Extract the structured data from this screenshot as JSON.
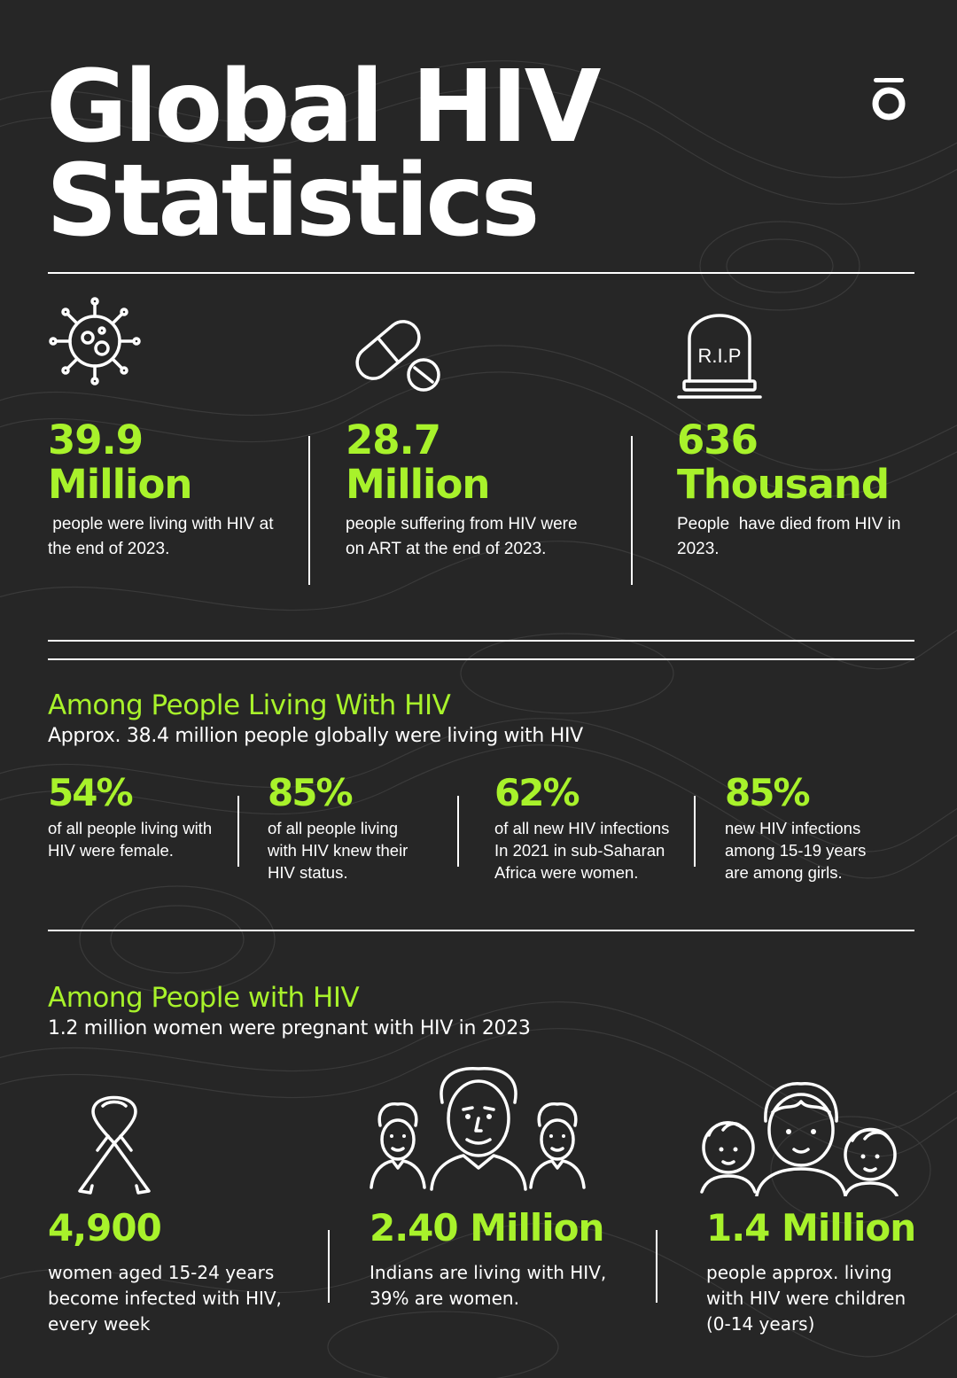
{
  "title_line1": "Global HIV",
  "title_line2": "Statistics",
  "top_stats": [
    {
      "icon": "virus-icon",
      "value": "39.9",
      "unit": "Million",
      "text": " people were living with HIV at the end of 2023."
    },
    {
      "icon": "pill-icon",
      "value": "28.7",
      "unit": "Million",
      "text": "people suffering from HIV were on ART at the end of 2023."
    },
    {
      "icon": "tombstone-icon",
      "icon_text": "R.I.P",
      "value": "636",
      "unit": "Thousand",
      "text": "People  have died from HIV in 2023."
    }
  ],
  "section1": {
    "title": "Among People Living With HIV",
    "subtitle": "Approx. 38.4 million people globally were living with HIV",
    "stats": [
      {
        "value": "54%",
        "text": "of all people living with HIV were female."
      },
      {
        "value": "85%",
        "text": "of all people living with HIV knew their HIV status."
      },
      {
        "value": "62%",
        "text": "of all new HIV infections In 2021 in sub-Saharan Africa were women."
      },
      {
        "value": "85%",
        "text": "new HIV infections among 15-19 years are among girls."
      }
    ]
  },
  "section2": {
    "title": "Among People with HIV",
    "subtitle": "1.2 million women were pregnant with HIV in 2023",
    "stats": [
      {
        "icon": "awareness-ribbon-icon",
        "value": "4,900",
        "text": "women aged 15-24 years become infected with HIV, every week"
      },
      {
        "icon": "men-group-icon",
        "value": "2.40 Million",
        "text": "Indians are living with HIV, 39% are women."
      },
      {
        "icon": "children-group-icon",
        "value": "1.4 Million",
        "text": "people approx. living with HIV were children (0-14 years)"
      }
    ]
  },
  "colors": {
    "background": "#262626",
    "accent": "#a8f22b",
    "text": "#ffffff"
  }
}
